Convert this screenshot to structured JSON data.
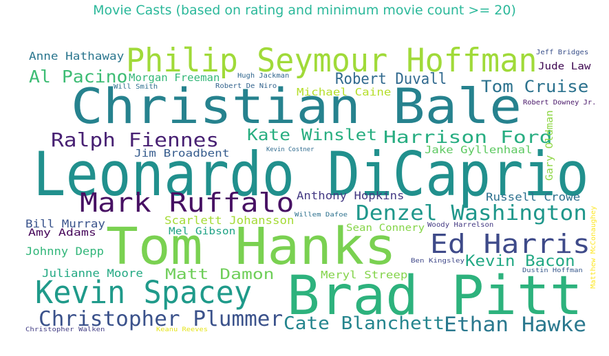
{
  "title": "Movie Casts (based on rating and minimum movie count >= 20)",
  "words": [
    {
      "text": "Leonardo DiCaprio",
      "color": "#21908d"
    },
    {
      "text": "Christian Bale",
      "color": "#26828e"
    },
    {
      "text": "Brad Pitt",
      "color": "#2db27d"
    },
    {
      "text": "Tom Hanks",
      "color": "#7ad151"
    },
    {
      "text": "Philip Seymour Hoffman",
      "color": "#a0da39"
    },
    {
      "text": "Mark Ruffalo",
      "color": "#471063"
    },
    {
      "text": "Kevin Spacey",
      "color": "#1f9a8a"
    },
    {
      "text": "Ed Harris",
      "color": "#3e4a89"
    },
    {
      "text": "Christopher Plummer",
      "color": "#3b528b"
    },
    {
      "text": "Denzel Washington",
      "color": "#1f978b"
    },
    {
      "text": "Ethan Hawke",
      "color": "#2a788e"
    },
    {
      "text": "Cate Blanchett",
      "color": "#25858e"
    },
    {
      "text": "Ralph Fiennes",
      "color": "#482173"
    },
    {
      "text": "Harrison Ford",
      "color": "#27ad81"
    },
    {
      "text": "Kate Winslet",
      "color": "#28ae80"
    },
    {
      "text": "Tom Cruise",
      "color": "#2c728e"
    },
    {
      "text": "Robert Duvall",
      "color": "#30698e"
    },
    {
      "text": "Matt Damon",
      "color": "#6ece58"
    },
    {
      "text": "Kevin Bacon",
      "color": "#22a884"
    },
    {
      "text": "Al Pacino",
      "color": "#3dbc74"
    },
    {
      "text": "Anthony Hopkins",
      "color": "#443983"
    },
    {
      "text": "Russell Crowe",
      "color": "#2d708e"
    },
    {
      "text": "Scarlett Johansson",
      "color": "#a5db36"
    },
    {
      "text": "Anne Hathaway",
      "color": "#2a768e"
    },
    {
      "text": "Morgan Freeman",
      "color": "#35b779"
    },
    {
      "text": "Michael Caine",
      "color": "#b5de2b"
    },
    {
      "text": "Jake Gyllenhaal",
      "color": "#5ec962"
    },
    {
      "text": "Jim Broadbent",
      "color": "#365c8d"
    },
    {
      "text": "Bill Murray",
      "color": "#3a548c"
    },
    {
      "text": "Amy Adams",
      "color": "#46075a"
    },
    {
      "text": "Johnny Depp",
      "color": "#32b67a"
    },
    {
      "text": "Julianne Moore",
      "color": "#23a983"
    },
    {
      "text": "Meryl Streep",
      "color": "#84d44b"
    },
    {
      "text": "Mel Gibson",
      "color": "#20a386"
    },
    {
      "text": "Sean Connery",
      "color": "#86d549"
    },
    {
      "text": "Jude Law",
      "color": "#3e0751"
    },
    {
      "text": "Gary Oldman",
      "color": "#8ed645"
    },
    {
      "text": "Robert Downey Jr.",
      "color": "#481668"
    },
    {
      "text": "Jeff Bridges",
      "color": "#3b518b"
    },
    {
      "text": "Woody Harrelson",
      "color": "#443a83"
    },
    {
      "text": "Hugh Jackman",
      "color": "#31668e"
    },
    {
      "text": "Will Smith",
      "color": "#2e6f8e"
    },
    {
      "text": "Robert De Niro",
      "color": "#33638d"
    },
    {
      "text": "Kevin Costner",
      "color": "#2f6b8e"
    },
    {
      "text": "Willem Dafoe",
      "color": "#2d718e"
    },
    {
      "text": "Ben Kingsley",
      "color": "#3f4889"
    },
    {
      "text": "Dustin Hoffman",
      "color": "#38598c"
    },
    {
      "text": "Matthew McConaughey",
      "color": "#fde725"
    },
    {
      "text": "Christopher Walken",
      "color": "#433e85"
    },
    {
      "text": "Keanu Reeves",
      "color": "#e5e419"
    }
  ]
}
